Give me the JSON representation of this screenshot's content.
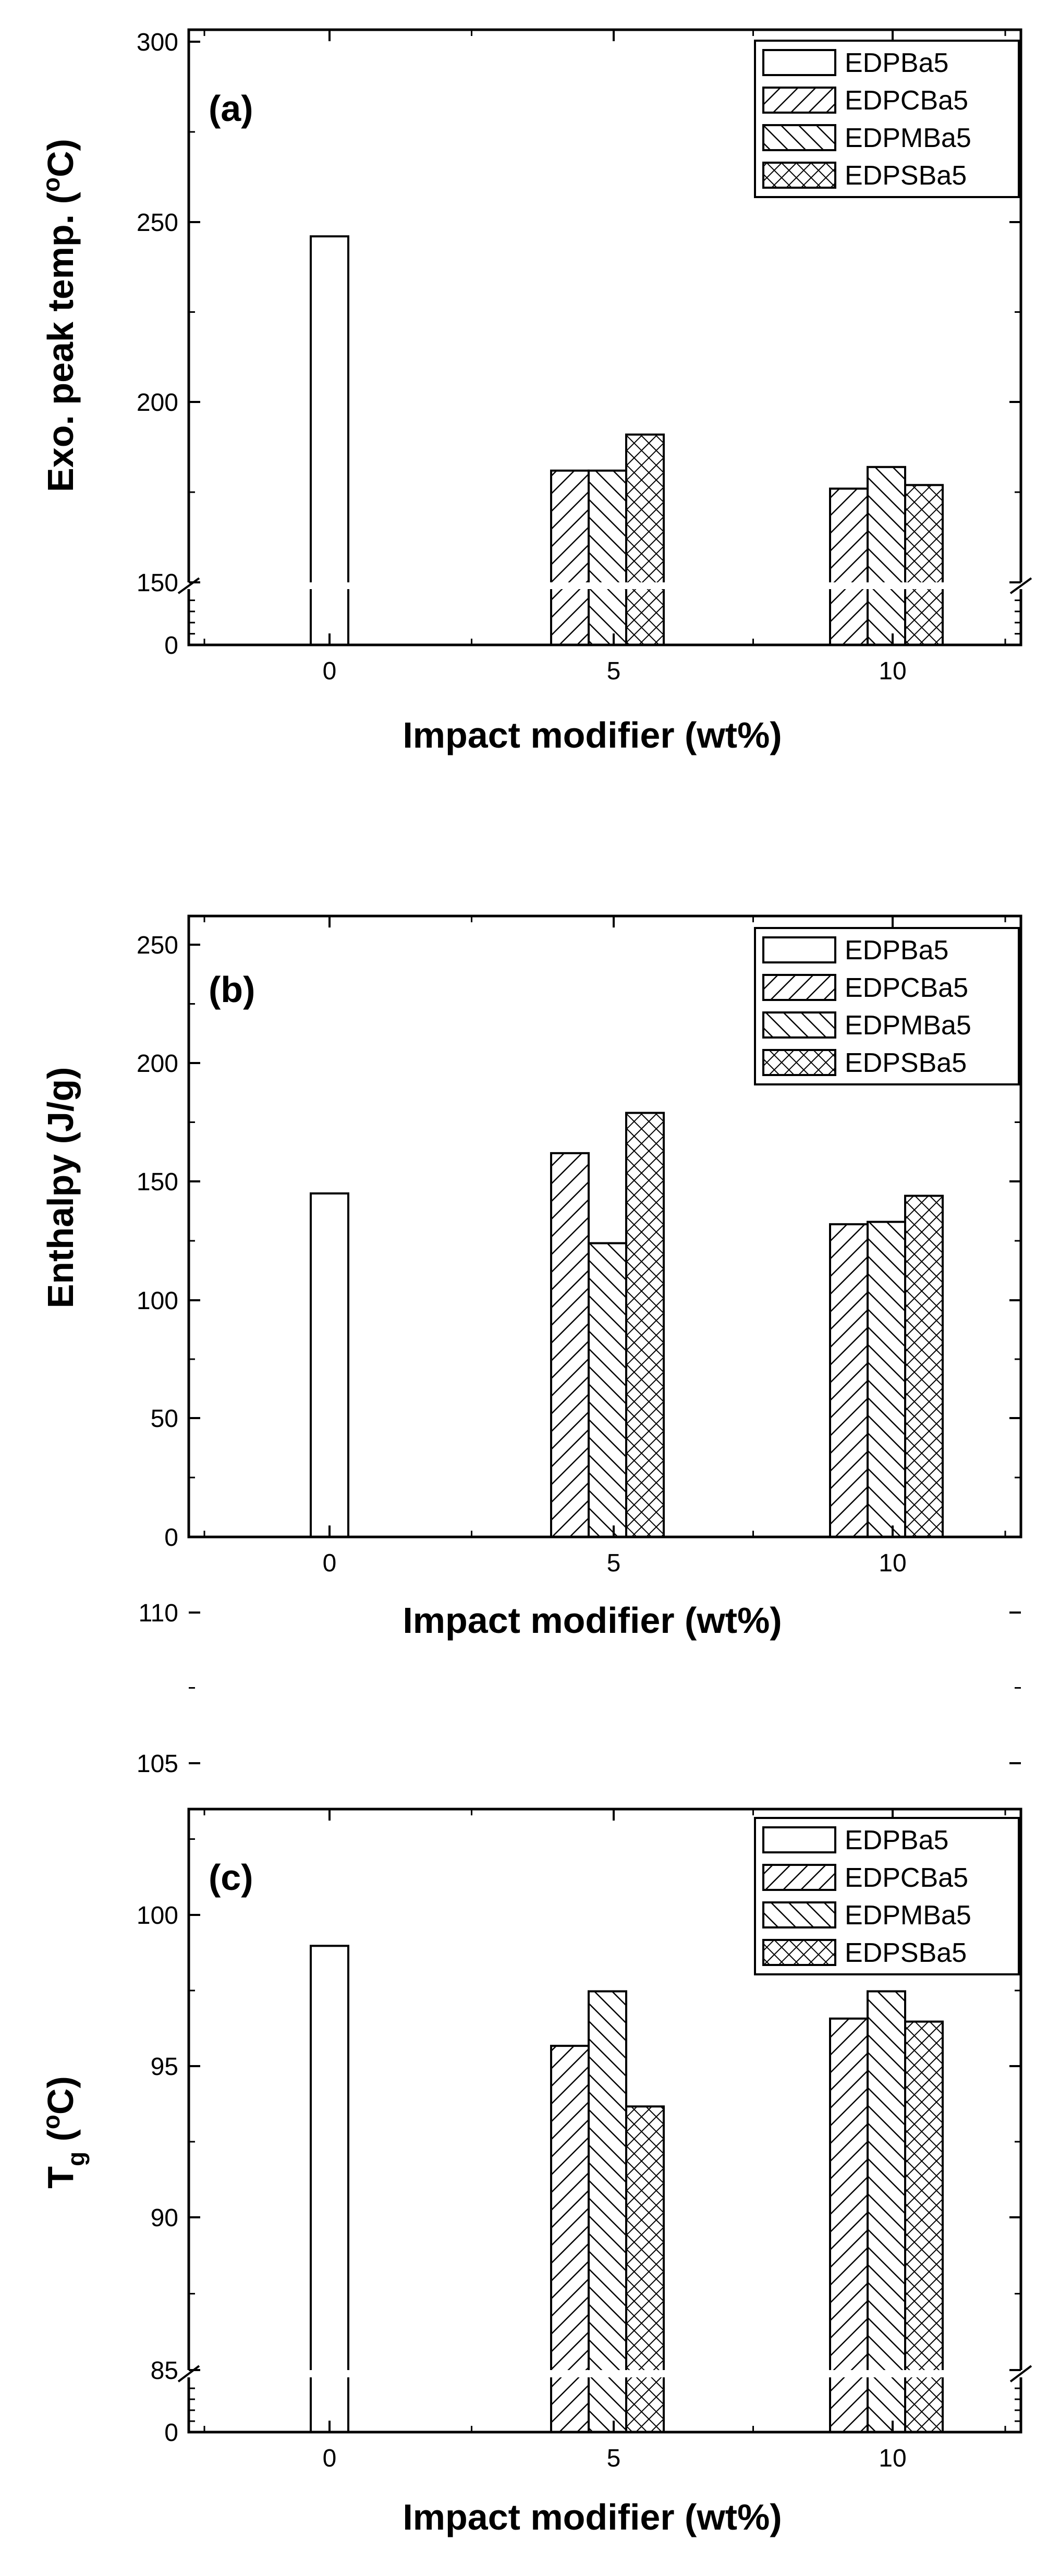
{
  "legend": [
    {
      "name": "EDPBa5",
      "pattern": "empty"
    },
    {
      "name": "EDPCBa5",
      "pattern": "forward-diagonal"
    },
    {
      "name": "EDPMBa5",
      "pattern": "backward-diagonal"
    },
    {
      "name": "EDPSBa5",
      "pattern": "crosshatch"
    }
  ],
  "chart_data": [
    {
      "type": "bar",
      "panel_label": "(a)",
      "categories": [
        "0",
        "5",
        "10"
      ],
      "xlabel": "Impact modifier (wt%)",
      "ylabel_main": "Exo. peak temp. (",
      "ylabel_sup": "o",
      "ylabel_tail": "C)",
      "ylim": [
        0,
        300
      ],
      "axis_break": [
        0,
        150
      ],
      "yticks": [
        "0",
        "150",
        "200",
        "250",
        "300"
      ],
      "legend_position": "top-right",
      "series": [
        {
          "name": "EDPBa5",
          "values": [
            246,
            null,
            null
          ]
        },
        {
          "name": "EDPCBa5",
          "values": [
            null,
            181,
            176
          ]
        },
        {
          "name": "EDPMBa5",
          "values": [
            null,
            181,
            182
          ]
        },
        {
          "name": "EDPSBa5",
          "values": [
            null,
            191,
            177
          ]
        }
      ]
    },
    {
      "type": "bar",
      "panel_label": "(b)",
      "categories": [
        "0",
        "5",
        "10"
      ],
      "xlabel": "Impact modifier (wt%)",
      "ylabel_main": "Enthalpy (J/g)",
      "ylim": [
        0,
        250
      ],
      "yticks": [
        "0",
        "50",
        "100",
        "150",
        "200",
        "250"
      ],
      "legend_position": "top-right",
      "series": [
        {
          "name": "EDPBa5",
          "values": [
            145,
            null,
            null
          ]
        },
        {
          "name": "EDPCBa5",
          "values": [
            null,
            162,
            132
          ]
        },
        {
          "name": "EDPMBa5",
          "values": [
            null,
            124,
            133
          ]
        },
        {
          "name": "EDPSBa5",
          "values": [
            null,
            179,
            144
          ]
        }
      ]
    },
    {
      "type": "bar",
      "panel_label": "(c)",
      "categories": [
        "0",
        "5",
        "10"
      ],
      "xlabel": "Impact modifier (wt%)",
      "ylabel_main": "T",
      "ylabel_sub": "g",
      "ylabel_mid": " (",
      "ylabel_sup": "o",
      "ylabel_tail": "C)",
      "ylim": [
        0,
        110
      ],
      "axis_break": [
        0,
        85
      ],
      "yticks": [
        "0",
        "85",
        "90",
        "95",
        "100",
        "105",
        "110"
      ],
      "legend_position": "top-right",
      "series": [
        {
          "name": "EDPBa5",
          "values": [
            99.0,
            null,
            null
          ]
        },
        {
          "name": "EDPCBa5",
          "values": [
            null,
            95.7,
            96.6
          ]
        },
        {
          "name": "EDPMBa5",
          "values": [
            null,
            97.5,
            97.5
          ]
        },
        {
          "name": "EDPSBa5",
          "values": [
            null,
            93.7,
            96.5
          ]
        }
      ]
    }
  ]
}
